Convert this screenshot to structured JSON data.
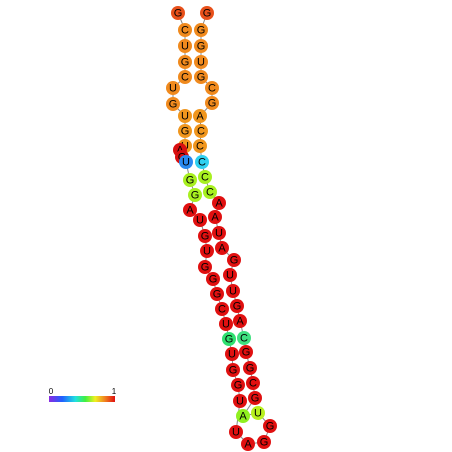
{
  "nucleotides": [
    {
      "label": "G",
      "color": "#e8501a"
    },
    {
      "label": "C",
      "color": "#f08a1e"
    },
    {
      "label": "U",
      "color": "#f08a1e"
    },
    {
      "label": "G",
      "color": "#f08a1e"
    },
    {
      "label": "C",
      "color": "#f08a1e"
    },
    {
      "label": "U",
      "color": "#f08a1e"
    },
    {
      "label": "G",
      "color": "#f08a1e"
    },
    {
      "label": "U",
      "color": "#f0961e"
    },
    {
      "label": "G",
      "color": "#f0961e"
    },
    {
      "label": "U",
      "color": "#f0961e"
    },
    {
      "label": "A",
      "color": "#d81010"
    },
    {
      "label": "G",
      "color": "#d81010"
    },
    {
      "label": "U",
      "color": "#2a8af0"
    },
    {
      "label": "G",
      "color": "#a8f020"
    },
    {
      "label": "G",
      "color": "#a8f020"
    },
    {
      "label": "A",
      "color": "#e01010"
    },
    {
      "label": "U",
      "color": "#e01010"
    },
    {
      "label": "G",
      "color": "#e01010"
    },
    {
      "label": "U",
      "color": "#e01010"
    },
    {
      "label": "G",
      "color": "#e01010"
    },
    {
      "label": "G",
      "color": "#e01010"
    },
    {
      "label": "G",
      "color": "#e01010"
    },
    {
      "label": "C",
      "color": "#e01010"
    },
    {
      "label": "U",
      "color": "#e01010"
    },
    {
      "label": "G",
      "color": "#30e070"
    },
    {
      "label": "U",
      "color": "#e01010"
    },
    {
      "label": "G",
      "color": "#e01010"
    },
    {
      "label": "G",
      "color": "#e01010"
    },
    {
      "label": "U",
      "color": "#e01010"
    },
    {
      "label": "U",
      "color": "#e01010"
    },
    {
      "label": "A",
      "color": "#e01010"
    },
    {
      "label": "G",
      "color": "#e01010"
    },
    {
      "label": "G",
      "color": "#e01010"
    },
    {
      "label": "U",
      "color": "#b8f020"
    },
    {
      "label": "A",
      "color": "#90f020"
    },
    {
      "label": "G",
      "color": "#e01010"
    },
    {
      "label": "C",
      "color": "#e01010"
    },
    {
      "label": "G",
      "color": "#e01010"
    },
    {
      "label": "G",
      "color": "#e01010"
    },
    {
      "label": "C",
      "color": "#40e080"
    },
    {
      "label": "A",
      "color": "#e01010"
    },
    {
      "label": "G",
      "color": "#e01010"
    },
    {
      "label": "U",
      "color": "#e01010"
    },
    {
      "label": "U",
      "color": "#e01010"
    },
    {
      "label": "G",
      "color": "#e01010"
    },
    {
      "label": "A",
      "color": "#e01010"
    },
    {
      "label": "U",
      "color": "#e01010"
    },
    {
      "label": "A",
      "color": "#e01010"
    },
    {
      "label": "A",
      "color": "#e01010"
    },
    {
      "label": "C",
      "color": "#a8f020"
    },
    {
      "label": "C",
      "color": "#a8f020"
    },
    {
      "label": "C",
      "color": "#30d0f0"
    },
    {
      "label": "C",
      "color": "#f0961e"
    },
    {
      "label": "C",
      "color": "#f0961e"
    },
    {
      "label": "A",
      "color": "#f0961e"
    },
    {
      "label": "G",
      "color": "#f08a1e"
    },
    {
      "label": "C",
      "color": "#f08a1e"
    },
    {
      "label": "G",
      "color": "#f08a1e"
    },
    {
      "label": "U",
      "color": "#f08a1e"
    },
    {
      "label": "G",
      "color": "#f08a1e"
    },
    {
      "label": "G",
      "color": "#f08a1e"
    },
    {
      "label": "G",
      "color": "#e8501a"
    }
  ],
  "colorbar": {
    "min_label": "0",
    "max_label": "1"
  }
}
